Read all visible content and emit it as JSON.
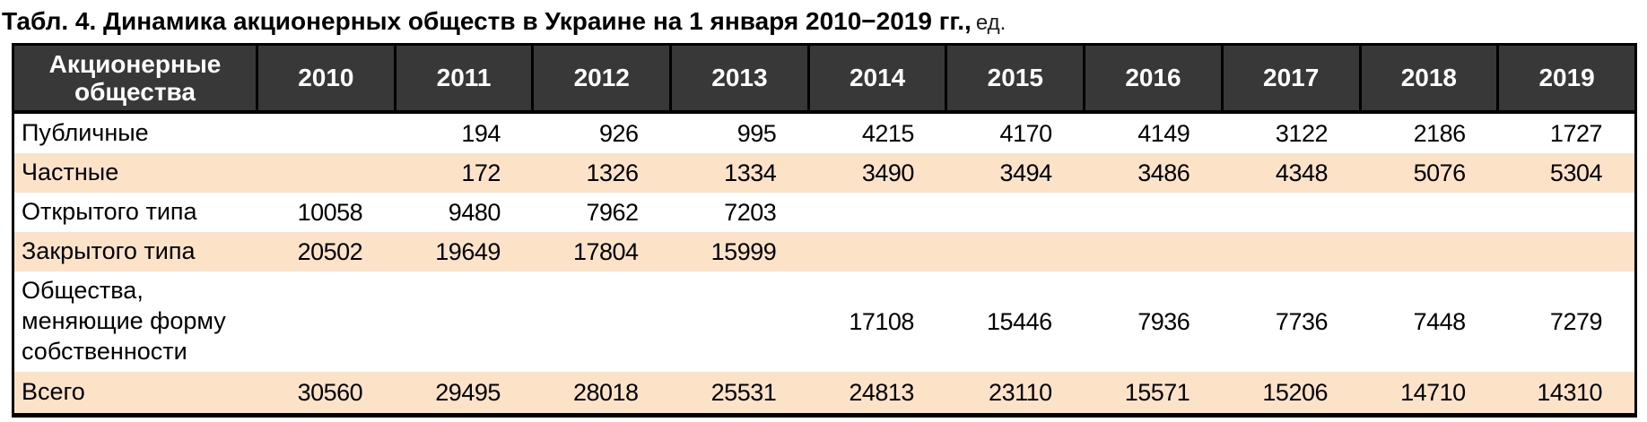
{
  "title": {
    "main": "Табл. 4. Динамика акционерных обществ в Украине на 1 января 2010−2019 гг.,",
    "unit": "ед."
  },
  "table": {
    "header_label": "Акционерные общества",
    "years": [
      "2010",
      "2011",
      "2012",
      "2013",
      "2014",
      "2015",
      "2016",
      "2017",
      "2018",
      "2019"
    ],
    "rows": [
      {
        "label": "Публичные",
        "values": [
          "",
          "194",
          "926",
          "995",
          "4215",
          "4170",
          "4149",
          "3122",
          "2186",
          "1727"
        ]
      },
      {
        "label": "Частные",
        "values": [
          "",
          "172",
          "1326",
          "1334",
          "3490",
          "3494",
          "3486",
          "4348",
          "5076",
          "5304"
        ]
      },
      {
        "label": "Открытого типа",
        "values": [
          "10058",
          "9480",
          "7962",
          "7203",
          "",
          "",
          "",
          "",
          "",
          ""
        ]
      },
      {
        "label": "Закрытого типа",
        "values": [
          "20502",
          "19649",
          "17804",
          "15999",
          "",
          "",
          "",
          "",
          "",
          ""
        ]
      },
      {
        "label": "Общества, меняющие форму собственности",
        "values": [
          "",
          "",
          "",
          "",
          "17108",
          "15446",
          "7936",
          "7736",
          "7448",
          "7279"
        ]
      },
      {
        "label": "Всего",
        "values": [
          "30560",
          "29495",
          "28018",
          "25531",
          "24813",
          "23110",
          "15571",
          "15206",
          "14710",
          "14310"
        ]
      }
    ],
    "colors": {
      "header_bg": "#383838",
      "header_text": "#ffffff",
      "stripe_bg": "#fce3c8",
      "border": "#000000"
    }
  }
}
